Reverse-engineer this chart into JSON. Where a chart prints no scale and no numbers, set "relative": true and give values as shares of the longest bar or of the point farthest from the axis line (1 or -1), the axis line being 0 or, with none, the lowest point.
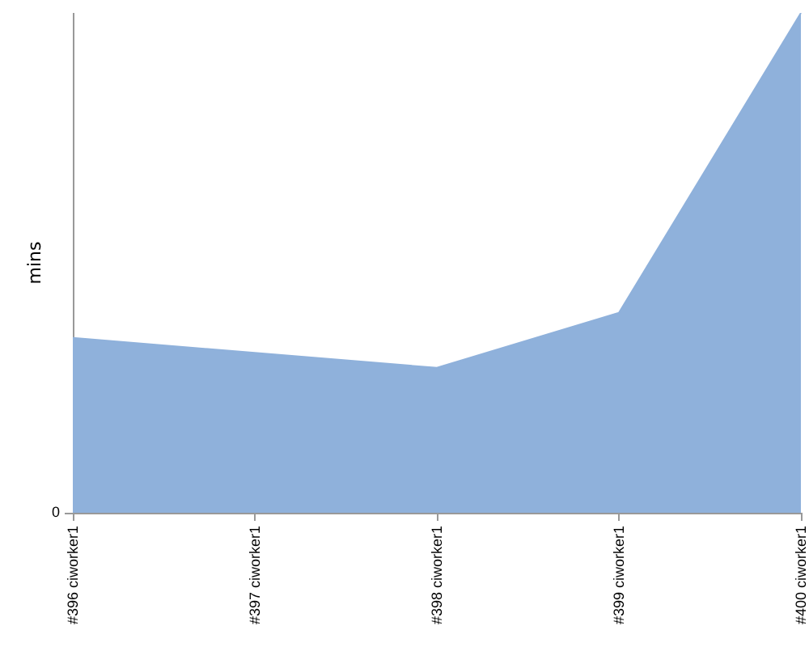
{
  "chart_data": {
    "type": "area",
    "ylabel": "mins",
    "relative": true,
    "annotations": [
      "0"
    ],
    "categories": [
      "#396 ciworker1",
      "#397 ciworker1",
      "#398 ciworker1",
      "#399 ciworker1",
      "#400 ciworker1"
    ],
    "series": [
      {
        "color": "#8fb1db",
        "values": [
          0.35,
          null,
          0.29,
          0.4,
          1
        ]
      }
    ],
    "grid": false,
    "marker": "none"
  }
}
